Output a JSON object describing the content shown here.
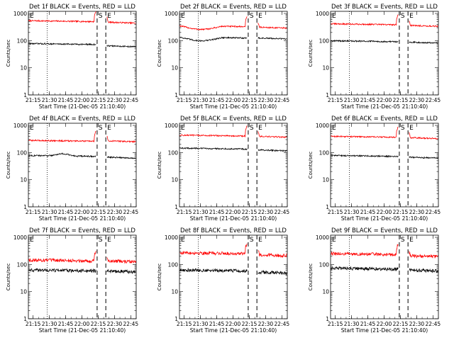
{
  "figure": {
    "background": "#ffffff",
    "panel_count": 9
  },
  "chart_data": [
    {
      "type": "line",
      "title": "Det 1f BLACK = Events, RED = LLD",
      "xlabel": "Start Time (21-Dec-05 21:10:40)",
      "ylabel": "Counts/sec",
      "x_tick_labels": [
        "21:15",
        "21:30",
        "21:45",
        "22:00",
        "22:15",
        "22:30",
        "22:45"
      ],
      "y_tick_labels": [
        "1",
        "10",
        "100",
        "1000"
      ],
      "x_range": [
        "21:10:40",
        "22:50:00"
      ],
      "y_range": [
        1,
        1200
      ],
      "y_scale": "log",
      "series": [
        {
          "color": "#ff0000",
          "level_before": 520,
          "level_after": 460,
          "shape": "flat"
        },
        {
          "color": "#000000",
          "level_before": 75,
          "level_after": 62,
          "shape": "flat"
        }
      ],
      "gap": [
        "22:13",
        "22:23"
      ],
      "markers": [
        {
          "time": "22:14",
          "label": "S",
          "style": "dashed"
        },
        {
          "time": "22:22",
          "label": "E",
          "style": "dashed"
        }
      ],
      "dotted_line": "21:28",
      "corner_label": "E"
    },
    {
      "type": "line",
      "title": "Det 2f BLACK = Events, RED = LLD",
      "xlabel": "Start Time (21-Dec-05 21:10:40)",
      "ylabel": "Counts/sec",
      "x_tick_labels": [
        "21:15",
        "21:30",
        "21:45",
        "22:00",
        "22:15",
        "22:30",
        "22:45"
      ],
      "y_tick_labels": [
        "1",
        "10",
        "100",
        "1000"
      ],
      "x_range": [
        "21:10:40",
        "22:50:00"
      ],
      "y_range": [
        1,
        1200
      ],
      "y_scale": "log",
      "series": [
        {
          "color": "#ff0000",
          "level_before": 340,
          "level_after": 300,
          "shape": "dip"
        },
        {
          "color": "#000000",
          "level_before": 130,
          "level_after": 120,
          "shape": "dip"
        }
      ],
      "gap": [
        "22:13",
        "22:23"
      ],
      "markers": [
        {
          "time": "22:14",
          "label": "S",
          "style": "dashed"
        },
        {
          "time": "22:22",
          "label": "E",
          "style": "dashed"
        }
      ],
      "dotted_line": "21:28",
      "corner_label": "E"
    },
    {
      "type": "line",
      "title": "Det 3f BLACK = Events, RED = LLD",
      "xlabel": "Start Time (21-Dec-05 21:10:40)",
      "ylabel": "Counts/sec",
      "x_tick_labels": [
        "21:15",
        "21:30",
        "21:45",
        "22:00",
        "22:15",
        "22:30",
        "22:45"
      ],
      "y_tick_labels": [
        "1",
        "10",
        "100",
        "1000"
      ],
      "x_range": [
        "21:10:40",
        "22:50:00"
      ],
      "y_range": [
        1,
        1200
      ],
      "y_scale": "log",
      "series": [
        {
          "color": "#ff0000",
          "level_before": 400,
          "level_after": 350,
          "shape": "flat"
        },
        {
          "color": "#000000",
          "level_before": 95,
          "level_after": 85,
          "shape": "flat"
        }
      ],
      "gap": [
        "22:13",
        "22:23"
      ],
      "markers": [
        {
          "time": "22:14",
          "label": "S",
          "style": "dashed"
        },
        {
          "time": "22:22",
          "label": "E",
          "style": "dashed"
        }
      ],
      "dotted_line": "21:28",
      "corner_label": "E"
    },
    {
      "type": "line",
      "title": "Det 4f BLACK = Events, RED = LLD",
      "xlabel": "Start Time (21-Dec-05 21:10:40)",
      "ylabel": "Counts/sec",
      "x_tick_labels": [
        "21:15",
        "21:30",
        "21:45",
        "22:00",
        "22:15",
        "22:30",
        "22:45"
      ],
      "y_tick_labels": [
        "1",
        "10",
        "100",
        "1000"
      ],
      "x_range": [
        "21:10:40",
        "22:50:00"
      ],
      "y_range": [
        1,
        1200
      ],
      "y_scale": "log",
      "series": [
        {
          "color": "#ff0000",
          "level_before": 270,
          "level_after": 260,
          "shape": "flat"
        },
        {
          "color": "#000000",
          "level_before": 75,
          "level_after": 65,
          "shape": "bump"
        }
      ],
      "gap": [
        "22:13",
        "22:23"
      ],
      "markers": [
        {
          "time": "22:14",
          "label": "S",
          "style": "dashed"
        },
        {
          "time": "22:22",
          "label": "E",
          "style": "dashed"
        }
      ],
      "dotted_line": "21:28",
      "corner_label": "E"
    },
    {
      "type": "line",
      "title": "Det 5f BLACK = Events, RED = LLD",
      "xlabel": "Start Time (21-Dec-05 21:10:40)",
      "ylabel": "Counts/sec",
      "x_tick_labels": [
        "21:15",
        "21:30",
        "21:45",
        "22:00",
        "22:15",
        "22:30",
        "22:45"
      ],
      "y_tick_labels": [
        "1",
        "10",
        "100",
        "1000"
      ],
      "x_range": [
        "21:10:40",
        "22:50:00"
      ],
      "y_range": [
        1,
        1200
      ],
      "y_scale": "log",
      "series": [
        {
          "color": "#ff0000",
          "level_before": 420,
          "level_after": 380,
          "shape": "flat"
        },
        {
          "color": "#000000",
          "level_before": 140,
          "level_after": 120,
          "shape": "flat"
        }
      ],
      "gap": [
        "22:13",
        "22:23"
      ],
      "markers": [
        {
          "time": "22:14",
          "label": "S",
          "style": "dashed"
        },
        {
          "time": "22:22",
          "label": "E",
          "style": "dashed"
        }
      ],
      "dotted_line": "21:28",
      "corner_label": "E"
    },
    {
      "type": "line",
      "title": "Det 6f BLACK = Events, RED = LLD",
      "xlabel": "Start Time (21-Dec-05 21:10:40)",
      "ylabel": "Counts/sec",
      "x_tick_labels": [
        "21:15",
        "21:30",
        "21:45",
        "22:00",
        "22:15",
        "22:30",
        "22:45"
      ],
      "y_tick_labels": [
        "1",
        "10",
        "100",
        "1000"
      ],
      "x_range": [
        "21:10:40",
        "22:50:00"
      ],
      "y_range": [
        1,
        1200
      ],
      "y_scale": "log",
      "series": [
        {
          "color": "#ff0000",
          "level_before": 380,
          "level_after": 340,
          "shape": "flat"
        },
        {
          "color": "#000000",
          "level_before": 75,
          "level_after": 65,
          "shape": "flat"
        }
      ],
      "gap": [
        "22:13",
        "22:23"
      ],
      "markers": [
        {
          "time": "22:14",
          "label": "S",
          "style": "dashed"
        },
        {
          "time": "22:22",
          "label": "E",
          "style": "dashed"
        }
      ],
      "dotted_line": "21:28",
      "corner_label": "E"
    },
    {
      "type": "line",
      "title": "Det 7f BLACK = Events, RED = LLD",
      "xlabel": "Start Time (21-Dec-05 21:10:40)",
      "ylabel": "Counts/sec",
      "x_tick_labels": [
        "21:15",
        "21:30",
        "21:45",
        "22:00",
        "22:15",
        "22:30",
        "22:45"
      ],
      "y_tick_labels": [
        "1",
        "10",
        "100",
        "1000"
      ],
      "x_range": [
        "21:10:40",
        "22:50:00"
      ],
      "y_range": [
        1,
        1200
      ],
      "y_scale": "log",
      "series": [
        {
          "color": "#ff0000",
          "level_before": 140,
          "level_after": 130,
          "shape": "noisy"
        },
        {
          "color": "#000000",
          "level_before": 60,
          "level_after": 55,
          "shape": "noisy"
        }
      ],
      "gap": [
        "22:13",
        "22:23"
      ],
      "markers": [
        {
          "time": "22:14",
          "label": "S",
          "style": "dashed"
        },
        {
          "time": "22:22",
          "label": "E",
          "style": "dashed"
        }
      ],
      "dotted_line": "21:28",
      "corner_label": "E"
    },
    {
      "type": "line",
      "title": "Det 8f BLACK = Events, RED = LLD",
      "xlabel": "Start Time (21-Dec-05 21:10:40)",
      "ylabel": "Counts/sec",
      "x_tick_labels": [
        "21:15",
        "21:30",
        "21:45",
        "22:00",
        "22:15",
        "22:30",
        "22:45"
      ],
      "y_tick_labels": [
        "1",
        "10",
        "100",
        "1000"
      ],
      "x_range": [
        "21:10:40",
        "22:50:00"
      ],
      "y_range": [
        1,
        1200
      ],
      "y_scale": "log",
      "series": [
        {
          "color": "#ff0000",
          "level_before": 260,
          "level_after": 220,
          "shape": "noisy"
        },
        {
          "color": "#000000",
          "level_before": 60,
          "level_after": 50,
          "shape": "noisy"
        }
      ],
      "gap": [
        "22:13",
        "22:23"
      ],
      "markers": [
        {
          "time": "22:14",
          "label": "S",
          "style": "dashed"
        },
        {
          "time": "22:22",
          "label": "E",
          "style": "dashed"
        }
      ],
      "dotted_line": "21:28",
      "corner_label": "E"
    },
    {
      "type": "line",
      "title": "Det 9f BLACK = Events, RED = LLD",
      "xlabel": "Start Time (21-Dec-05 21:10:40)",
      "ylabel": "Counts/sec",
      "x_tick_labels": [
        "21:15",
        "21:30",
        "21:45",
        "22:00",
        "22:15",
        "22:30",
        "22:45"
      ],
      "y_tick_labels": [
        "1",
        "10",
        "100",
        "1000"
      ],
      "x_range": [
        "21:10:40",
        "22:50:00"
      ],
      "y_range": [
        1,
        1200
      ],
      "y_scale": "log",
      "series": [
        {
          "color": "#ff0000",
          "level_before": 240,
          "level_after": 200,
          "shape": "noisy"
        },
        {
          "color": "#000000",
          "level_before": 70,
          "level_after": 60,
          "shape": "noisy"
        }
      ],
      "gap": [
        "22:13",
        "22:23"
      ],
      "markers": [
        {
          "time": "22:14",
          "label": "S",
          "style": "dashed"
        },
        {
          "time": "22:22",
          "label": "E",
          "style": "dashed"
        }
      ],
      "dotted_line": "21:28",
      "corner_label": "E"
    }
  ]
}
